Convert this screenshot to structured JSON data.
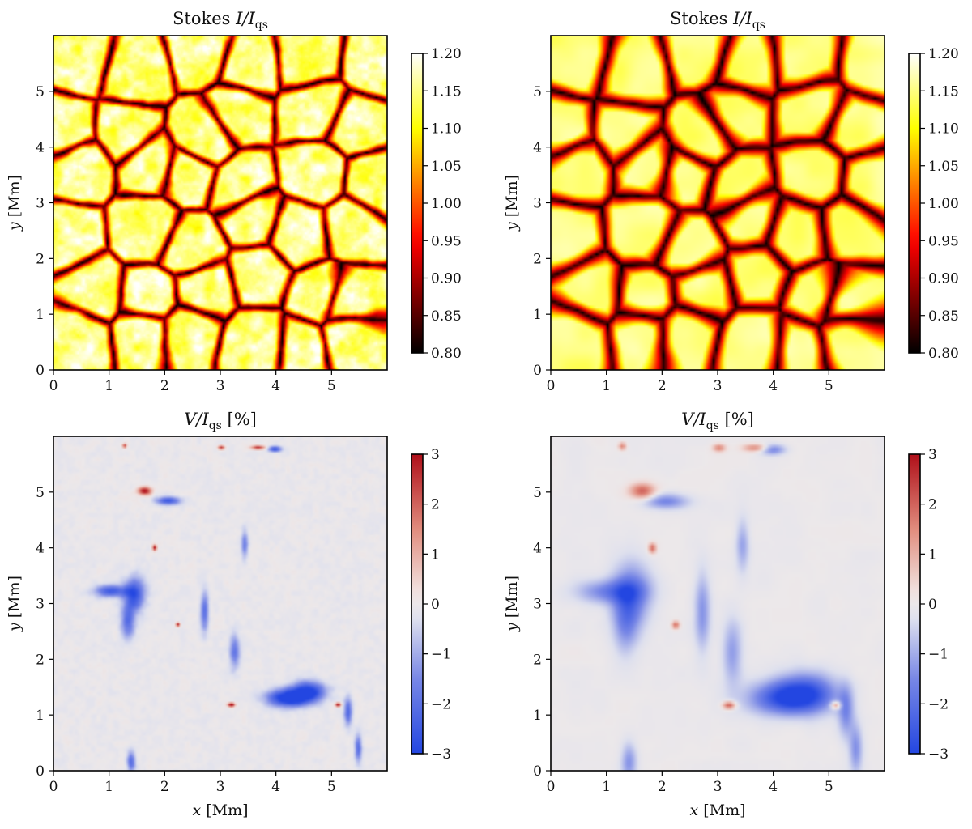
{
  "chart_data": [
    {
      "type": "heatmap",
      "panel": "top-left",
      "title": "Stokes I/I_qs",
      "title_main": "Stokes ",
      "title_math": "I/I",
      "title_sub": "qs",
      "xlabel": "",
      "ylabel_var": "y",
      "ylabel_unit": "[Mm]",
      "xlim": [
        0,
        6
      ],
      "ylim": [
        0,
        6
      ],
      "xticks": [
        0,
        1,
        2,
        3,
        4,
        5
      ],
      "yticks": [
        0,
        1,
        2,
        3,
        4,
        5
      ],
      "colormap": "hot",
      "colorbar": {
        "min": 0.8,
        "max": 1.2,
        "ticks": [
          "1.20",
          "1.15",
          "1.10",
          "1.05",
          "1.00",
          "0.95",
          "0.90",
          "0.85",
          "0.80"
        ]
      },
      "resolution": "high"
    },
    {
      "type": "heatmap",
      "panel": "top-right",
      "title": "Stokes I/I_qs",
      "title_main": "Stokes ",
      "title_math": "I/I",
      "title_sub": "qs",
      "xlabel": "",
      "ylabel_var": "y",
      "ylabel_unit": "[Mm]",
      "xlim": [
        0,
        6
      ],
      "ylim": [
        0,
        6
      ],
      "xticks": [
        0,
        1,
        2,
        3,
        4,
        5
      ],
      "yticks": [
        0,
        1,
        2,
        3,
        4,
        5
      ],
      "colormap": "hot",
      "colorbar": {
        "min": 0.8,
        "max": 1.2,
        "ticks": [
          "1.20",
          "1.15",
          "1.10",
          "1.05",
          "1.00",
          "0.95",
          "0.90",
          "0.85",
          "0.80"
        ]
      },
      "resolution": "degraded"
    },
    {
      "type": "heatmap",
      "panel": "bottom-left",
      "title": "V/I_qs [%]",
      "title_math": "V/I",
      "title_sub": "qs",
      "title_unit": " [%]",
      "xlabel_var": "x",
      "xlabel_unit": "[Mm]",
      "ylabel_var": "y",
      "ylabel_unit": "[Mm]",
      "xlim": [
        0,
        6
      ],
      "ylim": [
        0,
        6
      ],
      "xticks": [
        0,
        1,
        2,
        3,
        4,
        5
      ],
      "yticks": [
        0,
        1,
        2,
        3,
        4,
        5
      ],
      "colormap": "coolwarm",
      "colorbar": {
        "min": -3,
        "max": 3,
        "ticks": [
          "3",
          "2",
          "1",
          "0",
          "−1",
          "−2",
          "−3"
        ]
      },
      "resolution": "high"
    },
    {
      "type": "heatmap",
      "panel": "bottom-right",
      "title": "V/I_qs [%]",
      "title_math": "V/I",
      "title_sub": "qs",
      "title_unit": " [%]",
      "xlabel_var": "x",
      "xlabel_unit": "[Mm]",
      "ylabel_var": "y",
      "ylabel_unit": "[Mm]",
      "xlim": [
        0,
        6
      ],
      "ylim": [
        0,
        6
      ],
      "xticks": [
        0,
        1,
        2,
        3,
        4,
        5
      ],
      "yticks": [
        0,
        1,
        2,
        3,
        4,
        5
      ],
      "colormap": "coolwarm",
      "colorbar": {
        "min": -3,
        "max": 3,
        "ticks": [
          "3",
          "2",
          "1",
          "0",
          "−1",
          "−2",
          "−3"
        ]
      },
      "resolution": "degraded"
    }
  ]
}
